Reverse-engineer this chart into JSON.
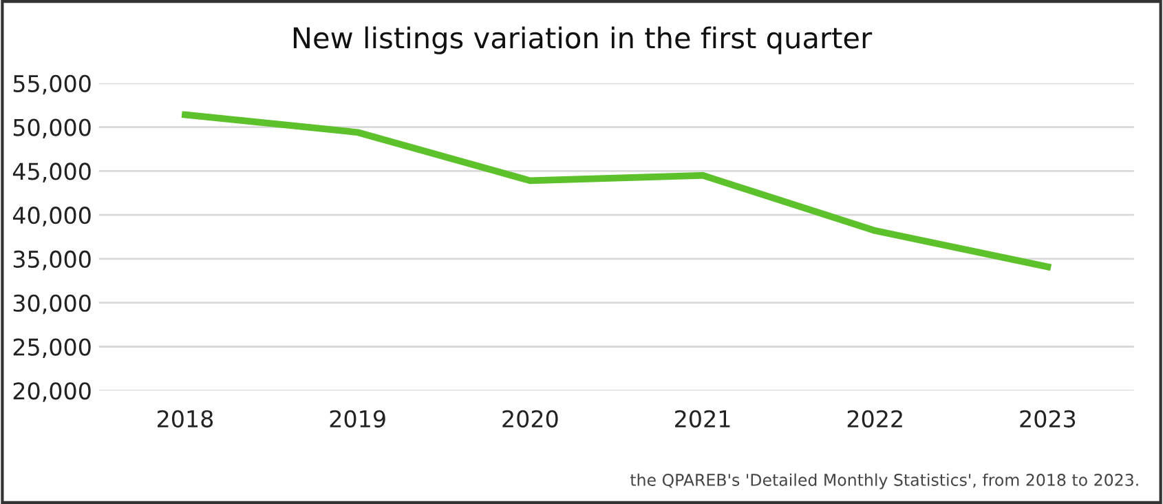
{
  "chart_data": {
    "type": "line",
    "title": "New listings variation in the first quarter",
    "categories": [
      "2018",
      "2019",
      "2020",
      "2021",
      "2022",
      "2023"
    ],
    "series": [
      {
        "color": "#5cc12a",
        "values": [
          51400,
          49400,
          43900,
          44500,
          38200,
          34100
        ]
      }
    ],
    "ylim": [
      20000,
      55000
    ],
    "yticks": [
      {
        "value": 20000,
        "label": "20,000"
      },
      {
        "value": 25000,
        "label": "25,000"
      },
      {
        "value": 30000,
        "label": "30,000"
      },
      {
        "value": 35000,
        "label": "35,000"
      },
      {
        "value": 40000,
        "label": "40,000"
      },
      {
        "value": 45000,
        "label": "45,000"
      },
      {
        "value": 50000,
        "label": "50,000"
      },
      {
        "value": 55000,
        "label": "55,000"
      }
    ],
    "grid": "y",
    "marker": "none",
    "line_style": "solid",
    "annotations": [
      "the QPAREB's 'Detailed Monthly Statistics', from 2018 to 2023."
    ]
  }
}
